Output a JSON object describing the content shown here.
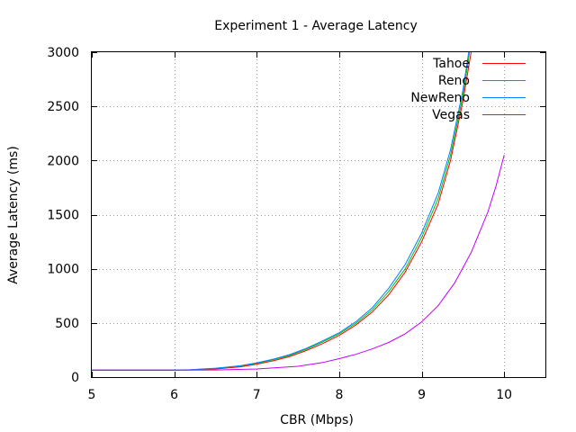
{
  "chart_data": {
    "type": "line",
    "title": "Experiment 1 - Average Latency",
    "xlabel": "CBR (Mbps)",
    "ylabel": "Average Latency (ms)",
    "xlim": [
      5,
      10.5
    ],
    "ylim": [
      0,
      3000
    ],
    "xticks": [
      5,
      6,
      7,
      8,
      9,
      10
    ],
    "yticks": [
      0,
      500,
      1000,
      1500,
      2000,
      2500,
      3000
    ],
    "grid": true,
    "legend_position": "top-right",
    "series": [
      {
        "name": "Tahoe",
        "color": "#ff0000",
        "points": [
          [
            5,
            65
          ],
          [
            5.5,
            65
          ],
          [
            6,
            65
          ],
          [
            6.2,
            66
          ],
          [
            6.5,
            75
          ],
          [
            6.8,
            95
          ],
          [
            7,
            120
          ],
          [
            7.2,
            150
          ],
          [
            7.4,
            190
          ],
          [
            7.6,
            245
          ],
          [
            7.8,
            310
          ],
          [
            8,
            385
          ],
          [
            8.2,
            480
          ],
          [
            8.4,
            600
          ],
          [
            8.6,
            760
          ],
          [
            8.8,
            970
          ],
          [
            9,
            1250
          ],
          [
            9.2,
            1600
          ],
          [
            9.35,
            2000
          ],
          [
            9.5,
            2550
          ],
          [
            9.6,
            3000
          ]
        ]
      },
      {
        "name": "Reno",
        "color": "#00c000",
        "points": [
          [
            5,
            65
          ],
          [
            5.5,
            65
          ],
          [
            6,
            65
          ],
          [
            6.2,
            67
          ],
          [
            6.5,
            80
          ],
          [
            6.8,
            102
          ],
          [
            7,
            128
          ],
          [
            7.2,
            160
          ],
          [
            7.4,
            200
          ],
          [
            7.6,
            258
          ],
          [
            7.8,
            325
          ],
          [
            8,
            400
          ],
          [
            8.2,
            495
          ],
          [
            8.4,
            620
          ],
          [
            8.6,
            790
          ],
          [
            8.8,
            1000
          ],
          [
            9,
            1290
          ],
          [
            9.2,
            1650
          ],
          [
            9.35,
            2050
          ],
          [
            9.5,
            2600
          ],
          [
            9.58,
            3000
          ]
        ]
      },
      {
        "name": "NewReno",
        "color": "#0080ff",
        "points": [
          [
            5,
            65
          ],
          [
            5.5,
            65
          ],
          [
            6,
            65
          ],
          [
            6.2,
            68
          ],
          [
            6.5,
            82
          ],
          [
            6.8,
            105
          ],
          [
            7,
            132
          ],
          [
            7.2,
            165
          ],
          [
            7.4,
            208
          ],
          [
            7.6,
            265
          ],
          [
            7.8,
            335
          ],
          [
            8,
            410
          ],
          [
            8.2,
            510
          ],
          [
            8.4,
            640
          ],
          [
            8.6,
            820
          ],
          [
            8.8,
            1040
          ],
          [
            9,
            1330
          ],
          [
            9.2,
            1700
          ],
          [
            9.35,
            2100
          ],
          [
            9.5,
            2650
          ],
          [
            9.57,
            3000
          ]
        ]
      },
      {
        "name": "Vegas",
        "color": "#c000ff",
        "points": [
          [
            5,
            65
          ],
          [
            5.5,
            65
          ],
          [
            6,
            65
          ],
          [
            6.5,
            66
          ],
          [
            7,
            75
          ],
          [
            7.5,
            100
          ],
          [
            7.8,
            135
          ],
          [
            8,
            170
          ],
          [
            8.2,
            210
          ],
          [
            8.4,
            260
          ],
          [
            8.6,
            320
          ],
          [
            8.8,
            400
          ],
          [
            9,
            510
          ],
          [
            9.2,
            660
          ],
          [
            9.4,
            870
          ],
          [
            9.6,
            1150
          ],
          [
            9.8,
            1520
          ],
          [
            9.9,
            1760
          ],
          [
            10,
            2050
          ]
        ]
      }
    ]
  }
}
